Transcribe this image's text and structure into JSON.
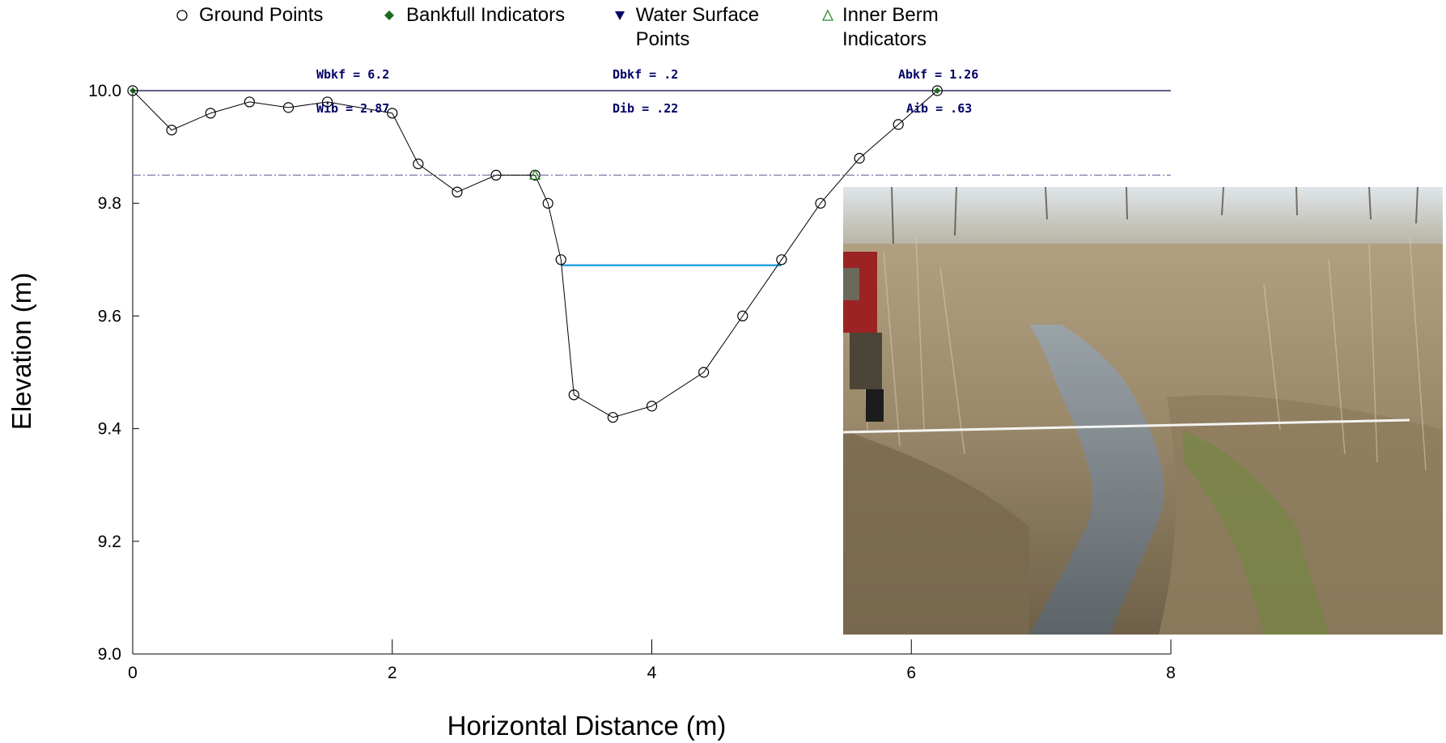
{
  "legend": {
    "ground": "Ground Points",
    "bankfull": "Bankfull Indicators",
    "water_surface": "Water Surface Points",
    "inner_berm": "Inner Berm Indicators"
  },
  "annotations": {
    "wbkf": "Wbkf = 6.2",
    "dbkf": "Dbkf = .2",
    "abkf": "Abkf = 1.26",
    "wib": "Wib = 2.87",
    "dib": "Dib = .22",
    "aib": "Aib = .63"
  },
  "colors": {
    "ground": "#000000",
    "bankfull": "#1a6b1a",
    "water_surface": "#000066",
    "inner_berm": "#2e8b2e",
    "water_line": "#29a3e0",
    "bankfull_line": "#000044",
    "inner_berm_line": "#7a7aa8"
  },
  "chart_data": {
    "type": "line",
    "xlabel": "Horizontal Distance (m)",
    "ylabel": "Elevation (m)",
    "xlim": [
      0,
      8
    ],
    "ylim": [
      9.0,
      10.0
    ],
    "xticks": [
      0,
      2,
      4,
      6,
      8
    ],
    "yticks": [
      "9.0",
      "9.2",
      "9.4",
      "9.6",
      "9.8",
      "10.0"
    ],
    "grid": false,
    "legend_placement": "top",
    "ground_points": {
      "x": [
        0,
        0.3,
        0.6,
        0.9,
        1.2,
        1.5,
        2.0,
        2.2,
        2.5,
        2.8,
        3.1,
        3.2,
        3.3,
        3.4,
        3.7,
        4.0,
        4.4,
        4.7,
        5.0,
        5.3,
        5.6,
        5.9,
        6.2
      ],
      "y": [
        10.0,
        9.93,
        9.96,
        9.98,
        9.97,
        9.98,
        9.96,
        9.87,
        9.82,
        9.85,
        9.85,
        9.8,
        9.7,
        9.46,
        9.42,
        9.44,
        9.5,
        9.6,
        9.7,
        9.8,
        9.88,
        9.94,
        10.0
      ]
    },
    "bankfull_indicators": {
      "x": [
        0,
        6.2
      ],
      "y": [
        10.0,
        10.0
      ]
    },
    "inner_berm_indicators": {
      "x": [
        3.1
      ],
      "y": [
        9.85
      ]
    },
    "bankfull_elevation": 10.0,
    "inner_berm_elevation": 9.85,
    "water_surface": {
      "x": [
        3.3,
        5.0
      ],
      "y": [
        9.69,
        9.69
      ]
    }
  }
}
